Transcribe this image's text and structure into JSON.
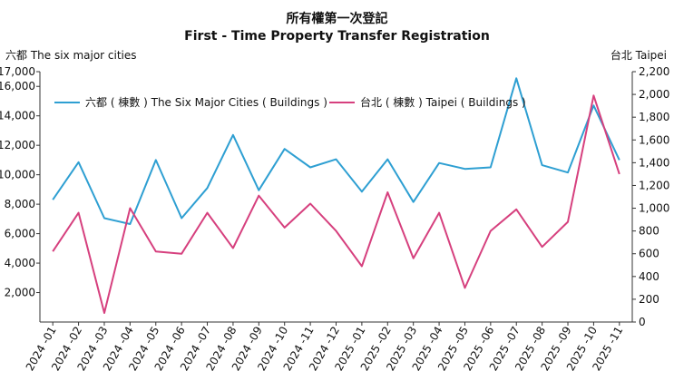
{
  "chart_data": {
    "type": "line",
    "title": "所有權第一次登記",
    "subtitle": "First - Time Property Transfer Registration",
    "ylabel_left": "六都  The six major cities",
    "ylabel_right": "台北 Taipei",
    "categories": [
      "2024 -01",
      "2024 -02",
      "2024 -03",
      "2024 -04",
      "2024 -05",
      "2024 -06",
      "2024 -07",
      "2024 -08",
      "2024 -09",
      "2024 -10",
      "2024 -11",
      "2024 -12",
      "2025 -01",
      "2025 -02",
      "2025 -03",
      "2025 -04",
      "2025 -05",
      "2025 -06",
      "2025 -07",
      "2025 -08",
      "2025 -09",
      "2025 -10",
      "2025 -11"
    ],
    "ylim_left": [
      0,
      17000
    ],
    "yticks_left": [
      2000,
      4000,
      6000,
      8000,
      10000,
      12000,
      14000,
      16000,
      17000
    ],
    "ylim_right": [
      0,
      2200
    ],
    "yticks_right": [
      0,
      200,
      400,
      600,
      800,
      1000,
      1200,
      1400,
      1600,
      1800,
      2000,
      2200
    ],
    "legend_position": "top-left",
    "series": [
      {
        "name": "六都 ( 棟數 ) The Six Major Cities ( Buildings )",
        "axis": "left",
        "color": "#2e9fd2",
        "values": [
          8300,
          10850,
          7050,
          6650,
          11000,
          7050,
          9100,
          12700,
          8950,
          11750,
          10500,
          11050,
          8850,
          11050,
          8150,
          10800,
          10400,
          10500,
          16550,
          10650,
          10150,
          14700,
          11000
        ]
      },
      {
        "name": "台北 ( 棟數 ) Taipei ( Buildings )",
        "axis": "right",
        "color": "#d6407e",
        "values": [
          620,
          960,
          80,
          1000,
          620,
          600,
          960,
          650,
          1110,
          830,
          1040,
          800,
          490,
          1140,
          560,
          960,
          300,
          800,
          990,
          660,
          880,
          1990,
          1300
        ]
      }
    ]
  }
}
